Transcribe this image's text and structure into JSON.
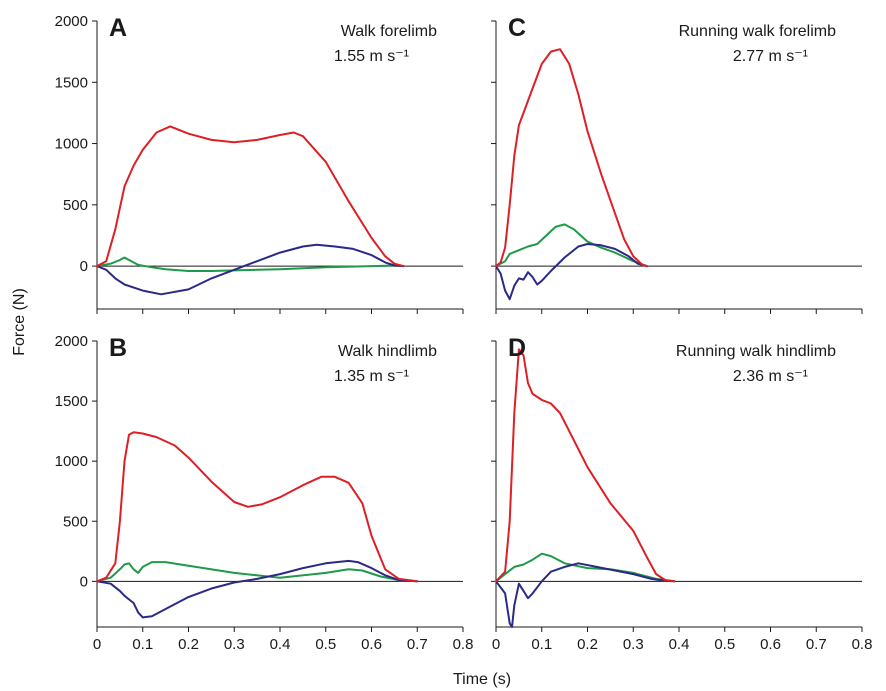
{
  "figure": {
    "ylabel": "Force (N)",
    "xlabel": "Time (s)"
  },
  "colors": {
    "vertical": "#dd1f26",
    "fore_aft": "#2a2a86",
    "lateral": "#1f9a48",
    "axis": "#1a1a1a"
  },
  "chart_data": [
    {
      "type": "line",
      "panel": "A",
      "annotation": "Walk forelimb",
      "speed": "1.55 m s⁻¹",
      "xlim": [
        0,
        0.8
      ],
      "ylim": [
        -350,
        2000
      ],
      "yticks": [
        0,
        500,
        1000,
        1500,
        2000
      ],
      "xticks": [
        0,
        0.1,
        0.2,
        0.3,
        0.4,
        0.5,
        0.6,
        0.7,
        0.8
      ],
      "series": [
        {
          "key": "vertical",
          "x": [
            0,
            0.02,
            0.04,
            0.06,
            0.08,
            0.1,
            0.13,
            0.16,
            0.2,
            0.25,
            0.3,
            0.35,
            0.4,
            0.43,
            0.45,
            0.5,
            0.55,
            0.6,
            0.63,
            0.65,
            0.67
          ],
          "y": [
            0,
            40,
            300,
            650,
            820,
            950,
            1090,
            1140,
            1080,
            1030,
            1010,
            1030,
            1070,
            1090,
            1060,
            850,
            530,
            230,
            80,
            20,
            0
          ]
        },
        {
          "key": "fore_aft",
          "x": [
            0,
            0.02,
            0.04,
            0.06,
            0.1,
            0.14,
            0.2,
            0.25,
            0.3,
            0.35,
            0.4,
            0.45,
            0.48,
            0.52,
            0.56,
            0.6,
            0.63,
            0.65,
            0.67
          ],
          "y": [
            0,
            -30,
            -100,
            -150,
            -200,
            -230,
            -190,
            -100,
            -30,
            40,
            110,
            160,
            175,
            160,
            140,
            90,
            30,
            5,
            0
          ]
        },
        {
          "key": "lateral",
          "x": [
            0,
            0.03,
            0.05,
            0.06,
            0.07,
            0.09,
            0.12,
            0.15,
            0.2,
            0.25,
            0.3,
            0.35,
            0.4,
            0.5,
            0.6,
            0.65,
            0.67
          ],
          "y": [
            0,
            20,
            50,
            70,
            50,
            10,
            -10,
            -25,
            -40,
            -40,
            -35,
            -30,
            -25,
            -10,
            0,
            5,
            0
          ]
        }
      ]
    },
    {
      "type": "line",
      "panel": "B",
      "annotation": "Walk hindlimb",
      "speed": "1.35 m s⁻¹",
      "xlim": [
        0,
        0.8
      ],
      "ylim": [
        -380,
        2000
      ],
      "yticks": [
        0,
        500,
        1000,
        1500,
        2000
      ],
      "xticks": [
        0,
        0.1,
        0.2,
        0.3,
        0.4,
        0.5,
        0.6,
        0.7,
        0.8
      ],
      "series": [
        {
          "key": "vertical",
          "x": [
            0,
            0.02,
            0.04,
            0.05,
            0.06,
            0.07,
            0.08,
            0.1,
            0.13,
            0.17,
            0.2,
            0.25,
            0.3,
            0.33,
            0.36,
            0.4,
            0.45,
            0.49,
            0.52,
            0.55,
            0.58,
            0.6,
            0.63,
            0.66,
            0.7
          ],
          "y": [
            0,
            30,
            150,
            500,
            1000,
            1220,
            1240,
            1230,
            1200,
            1130,
            1030,
            830,
            660,
            620,
            640,
            700,
            800,
            870,
            870,
            820,
            650,
            380,
            100,
            20,
            0
          ]
        },
        {
          "key": "fore_aft",
          "x": [
            0,
            0.03,
            0.05,
            0.06,
            0.07,
            0.08,
            0.09,
            0.1,
            0.12,
            0.15,
            0.2,
            0.25,
            0.3,
            0.35,
            0.4,
            0.45,
            0.5,
            0.55,
            0.57,
            0.6,
            0.63,
            0.66,
            0.7
          ],
          "y": [
            0,
            -20,
            -80,
            -120,
            -150,
            -180,
            -260,
            -300,
            -290,
            -230,
            -130,
            -60,
            -10,
            20,
            60,
            110,
            150,
            170,
            160,
            110,
            50,
            10,
            0
          ]
        },
        {
          "key": "lateral",
          "x": [
            0,
            0.03,
            0.05,
            0.06,
            0.07,
            0.08,
            0.09,
            0.1,
            0.12,
            0.15,
            0.2,
            0.3,
            0.4,
            0.5,
            0.55,
            0.58,
            0.62,
            0.66,
            0.7
          ],
          "y": [
            0,
            30,
            100,
            140,
            150,
            100,
            70,
            120,
            160,
            160,
            130,
            70,
            30,
            70,
            100,
            90,
            40,
            10,
            0
          ]
        }
      ]
    },
    {
      "type": "line",
      "panel": "C",
      "annotation": "Running walk forelimb",
      "speed": "2.77 m s⁻¹",
      "xlim": [
        0,
        0.8
      ],
      "ylim": [
        -350,
        2000
      ],
      "yticks": [
        0,
        500,
        1000,
        1500,
        2000
      ],
      "xticks": [
        0,
        0.1,
        0.2,
        0.3,
        0.4,
        0.5,
        0.6,
        0.7,
        0.8
      ],
      "series": [
        {
          "key": "vertical",
          "x": [
            0,
            0.01,
            0.02,
            0.03,
            0.04,
            0.05,
            0.06,
            0.08,
            0.1,
            0.12,
            0.14,
            0.16,
            0.18,
            0.2,
            0.23,
            0.26,
            0.28,
            0.3,
            0.32,
            0.33
          ],
          "y": [
            0,
            30,
            150,
            500,
            900,
            1150,
            1250,
            1450,
            1650,
            1750,
            1770,
            1650,
            1400,
            1100,
            750,
            430,
            220,
            80,
            10,
            0
          ]
        },
        {
          "key": "fore_aft",
          "x": [
            0,
            0.01,
            0.02,
            0.03,
            0.04,
            0.05,
            0.06,
            0.07,
            0.08,
            0.09,
            0.1,
            0.12,
            0.15,
            0.18,
            0.2,
            0.23,
            0.26,
            0.29,
            0.31,
            0.33
          ],
          "y": [
            0,
            -60,
            -200,
            -270,
            -160,
            -100,
            -110,
            -50,
            -90,
            -150,
            -120,
            -40,
            70,
            160,
            180,
            170,
            140,
            80,
            20,
            0
          ]
        },
        {
          "key": "lateral",
          "x": [
            0,
            0.02,
            0.03,
            0.05,
            0.07,
            0.09,
            0.11,
            0.13,
            0.15,
            0.17,
            0.2,
            0.23,
            0.26,
            0.3,
            0.33
          ],
          "y": [
            0,
            40,
            100,
            130,
            160,
            180,
            250,
            320,
            340,
            300,
            200,
            150,
            110,
            40,
            0
          ]
        }
      ]
    },
    {
      "type": "line",
      "panel": "D",
      "annotation": "Running walk hindlimb",
      "speed": "2.36 m s⁻¹",
      "xlim": [
        0,
        0.8
      ],
      "ylim": [
        -380,
        2000
      ],
      "yticks": [
        0,
        500,
        1000,
        1500,
        2000
      ],
      "xticks": [
        0,
        0.1,
        0.2,
        0.3,
        0.4,
        0.5,
        0.6,
        0.7,
        0.8
      ],
      "series": [
        {
          "key": "vertical",
          "x": [
            0,
            0.02,
            0.03,
            0.04,
            0.05,
            0.06,
            0.07,
            0.08,
            0.1,
            0.12,
            0.14,
            0.16,
            0.2,
            0.25,
            0.3,
            0.33,
            0.35,
            0.37,
            0.39
          ],
          "y": [
            0,
            80,
            500,
            1400,
            1930,
            1880,
            1650,
            1560,
            1510,
            1480,
            1400,
            1250,
            950,
            650,
            420,
            200,
            60,
            10,
            0
          ]
        },
        {
          "key": "fore_aft",
          "x": [
            0,
            0.02,
            0.03,
            0.035,
            0.04,
            0.05,
            0.06,
            0.07,
            0.08,
            0.1,
            0.12,
            0.15,
            0.18,
            0.22,
            0.26,
            0.3,
            0.34,
            0.37,
            0.39
          ],
          "y": [
            0,
            -100,
            -350,
            -380,
            -200,
            -20,
            -80,
            -140,
            -100,
            0,
            80,
            120,
            150,
            120,
            90,
            60,
            20,
            5,
            0
          ]
        },
        {
          "key": "lateral",
          "x": [
            0,
            0.02,
            0.04,
            0.06,
            0.08,
            0.1,
            0.12,
            0.15,
            0.2,
            0.25,
            0.3,
            0.35,
            0.39
          ],
          "y": [
            0,
            60,
            120,
            140,
            180,
            230,
            210,
            150,
            110,
            100,
            70,
            20,
            0
          ]
        }
      ]
    }
  ]
}
